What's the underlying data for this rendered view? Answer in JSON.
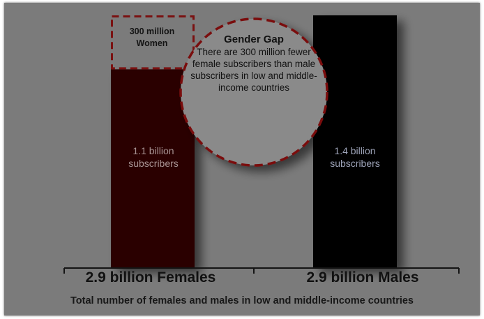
{
  "chart_data": {
    "type": "bar",
    "categories": [
      "2.9 billion Females",
      "2.9 billion Males"
    ],
    "series": [
      {
        "values": [
          1.1,
          1.4
        ]
      }
    ],
    "ylim": [
      0,
      1.4
    ],
    "grid": false,
    "legend": "none",
    "xlabel": "Total number of females and males in low and middle-income countries",
    "ylabel": "",
    "data_labels": [
      "1.1 billion subscribers",
      "1.4 billion subscribers"
    ],
    "gap": {
      "value": 0.3,
      "label": "300 million Women"
    },
    "callout": {
      "title": "Gender Gap",
      "text": "There are 300 million fewer female subscribers than male subscribers in low and middle-income countries"
    },
    "colors": {
      "females": "#2a0000",
      "males": "#000000",
      "gap_outline": "#7a1111",
      "background": "#7b7b7b"
    }
  }
}
